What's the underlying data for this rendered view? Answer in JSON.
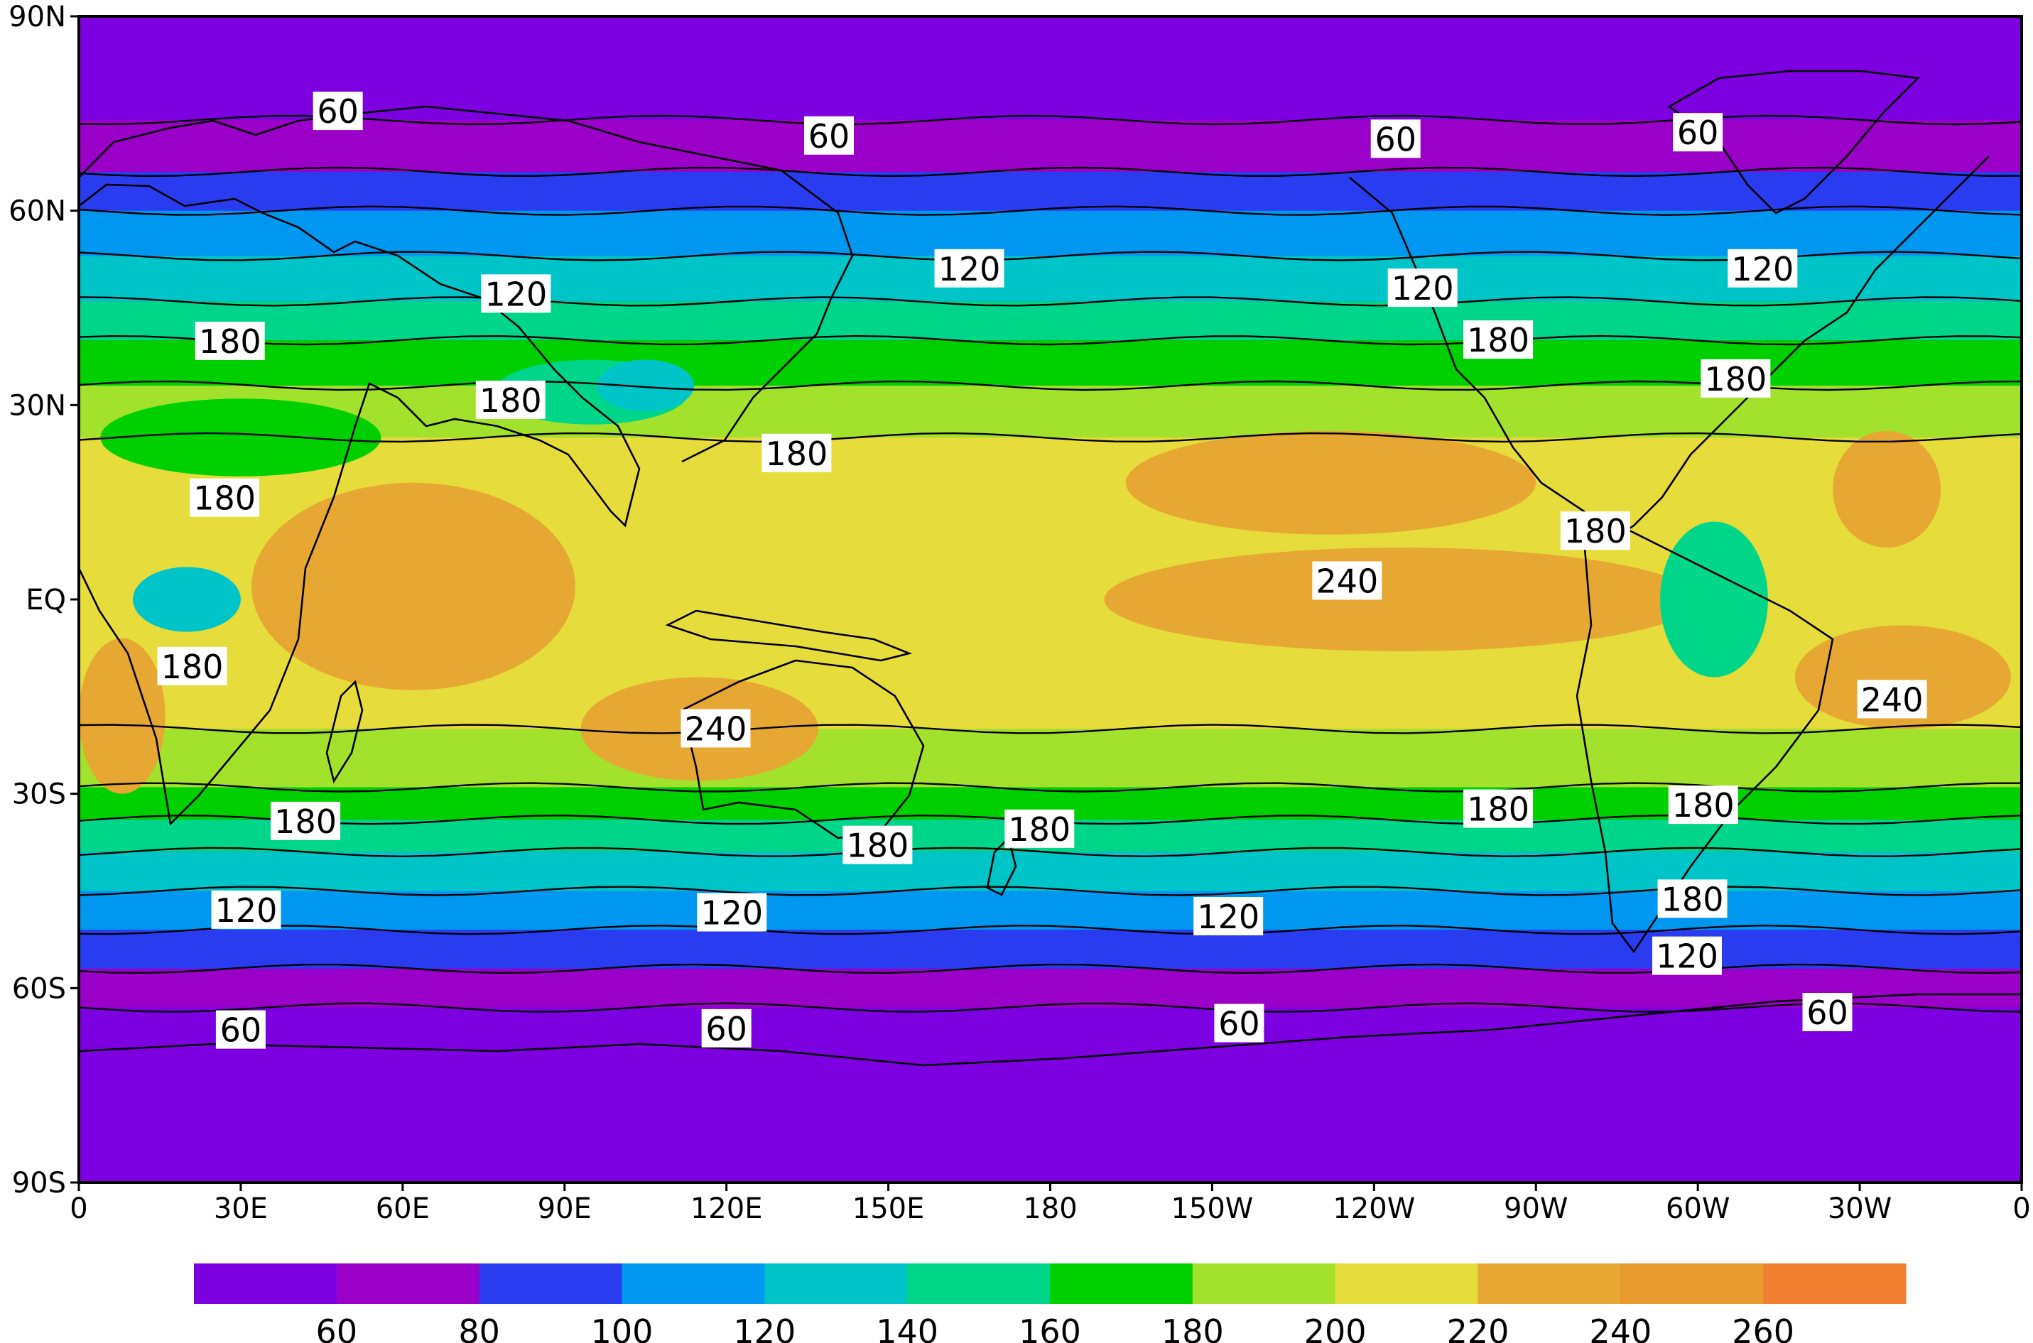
{
  "map": {
    "lat_range": [
      -90,
      90
    ],
    "lon_range": [
      0,
      360
    ],
    "x_ticks": [
      {
        "lon": 0,
        "label": "0"
      },
      {
        "lon": 30,
        "label": "30E"
      },
      {
        "lon": 60,
        "label": "60E"
      },
      {
        "lon": 90,
        "label": "90E"
      },
      {
        "lon": 120,
        "label": "120E"
      },
      {
        "lon": 150,
        "label": "150E"
      },
      {
        "lon": 180,
        "label": "180"
      },
      {
        "lon": 210,
        "label": "150W"
      },
      {
        "lon": 240,
        "label": "120W"
      },
      {
        "lon": 270,
        "label": "90W"
      },
      {
        "lon": 300,
        "label": "60W"
      },
      {
        "lon": 330,
        "label": "30W"
      },
      {
        "lon": 360,
        "label": "0"
      }
    ],
    "y_ticks": [
      {
        "lat": 90,
        "label": "90N"
      },
      {
        "lat": 60,
        "label": "60N"
      },
      {
        "lat": 30,
        "label": "30N"
      },
      {
        "lat": 0,
        "label": "EQ"
      },
      {
        "lat": -30,
        "label": "30S"
      },
      {
        "lat": -60,
        "label": "60S"
      },
      {
        "lat": -90,
        "label": "90S"
      }
    ],
    "contour_labels": [
      {
        "lon": 48,
        "lat": 75.3,
        "text": "60"
      },
      {
        "lon": 139,
        "lat": 71.5,
        "text": "60"
      },
      {
        "lon": 244,
        "lat": 71,
        "text": "60"
      },
      {
        "lon": 300,
        "lat": 72,
        "text": "60"
      },
      {
        "lon": 81,
        "lat": 47.1,
        "text": "120"
      },
      {
        "lon": 165,
        "lat": 51,
        "text": "120"
      },
      {
        "lon": 249,
        "lat": 48,
        "text": "120"
      },
      {
        "lon": 312,
        "lat": 51,
        "text": "120"
      },
      {
        "lon": 28,
        "lat": 39.8,
        "text": "180"
      },
      {
        "lon": 80,
        "lat": 30.7,
        "text": "180"
      },
      {
        "lon": 133,
        "lat": 22.5,
        "text": "180"
      },
      {
        "lon": 263,
        "lat": 40,
        "text": "180"
      },
      {
        "lon": 307,
        "lat": 34,
        "text": "180"
      },
      {
        "lon": 27,
        "lat": 15.6,
        "text": "180"
      },
      {
        "lon": 281,
        "lat": 10.5,
        "text": "180"
      },
      {
        "lon": 235,
        "lat": 2.8,
        "text": "240"
      },
      {
        "lon": 21,
        "lat": -10.4,
        "text": "180"
      },
      {
        "lon": 336,
        "lat": -15.5,
        "text": "240"
      },
      {
        "lon": 118,
        "lat": -20,
        "text": "240"
      },
      {
        "lon": 42,
        "lat": -34.3,
        "text": "180"
      },
      {
        "lon": 148,
        "lat": -38,
        "text": "180"
      },
      {
        "lon": 178,
        "lat": -35.5,
        "text": "180"
      },
      {
        "lon": 263,
        "lat": -32.4,
        "text": "180"
      },
      {
        "lon": 301,
        "lat": -31.8,
        "text": "180"
      },
      {
        "lon": 299,
        "lat": -46.3,
        "text": "180"
      },
      {
        "lon": 31,
        "lat": -48,
        "text": "120"
      },
      {
        "lon": 121,
        "lat": -48.4,
        "text": "120"
      },
      {
        "lon": 213,
        "lat": -49,
        "text": "120"
      },
      {
        "lon": 298,
        "lat": -55.1,
        "text": "120"
      },
      {
        "lon": 30,
        "lat": -66.5,
        "text": "60"
      },
      {
        "lon": 120,
        "lat": -66.3,
        "text": "60"
      },
      {
        "lon": 215,
        "lat": -65.5,
        "text": "60"
      },
      {
        "lon": 324,
        "lat": -63.8,
        "text": "60"
      }
    ]
  },
  "colorbar": {
    "colors": [
      "#7c00e0",
      "#9a00c8",
      "#2a3cf0",
      "#0097f0",
      "#00c5c8",
      "#00d68a",
      "#00cf00",
      "#a3e22c",
      "#e6dc3c",
      "#e6a832",
      "#e89a2e",
      "#f08030"
    ],
    "tick_labels": [
      "60",
      "80",
      "100",
      "120",
      "140",
      "160",
      "180",
      "200",
      "220",
      "240",
      "260"
    ]
  },
  "field_levels": [
    40,
    60,
    80,
    100,
    120,
    140,
    160,
    180,
    200,
    220,
    240,
    260
  ]
}
